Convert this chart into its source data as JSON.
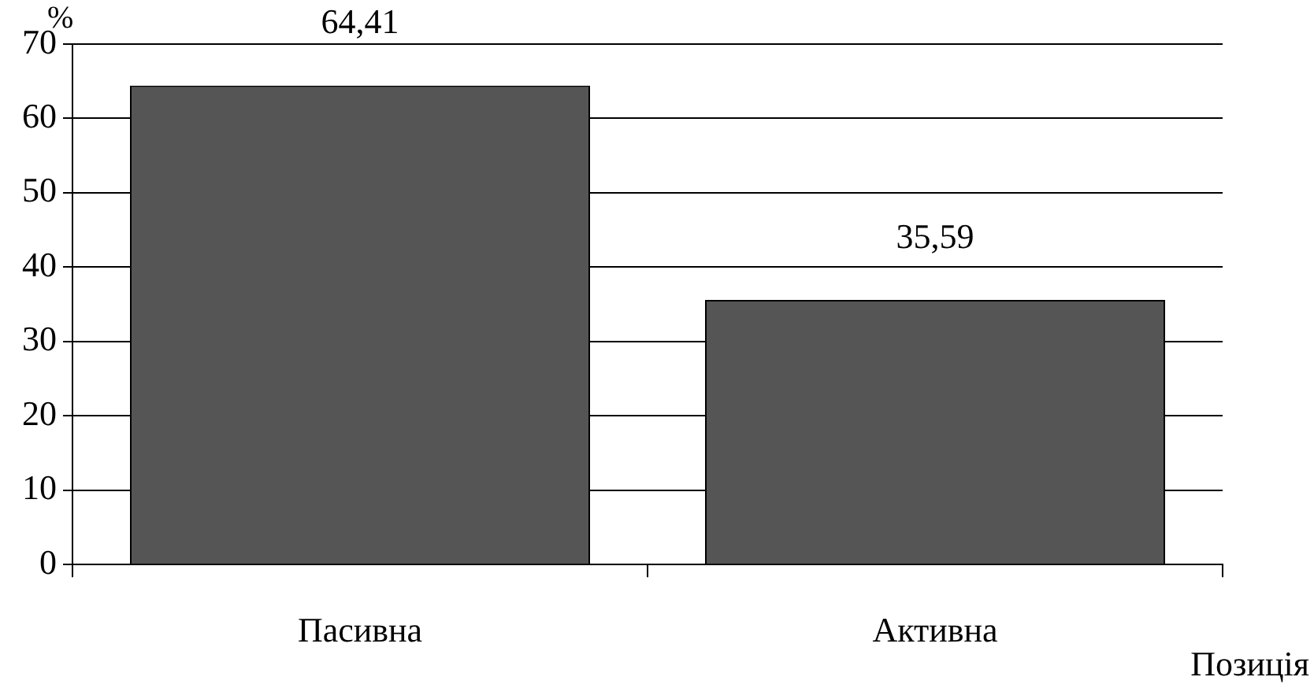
{
  "chart_data": {
    "type": "bar",
    "ylabel": "%",
    "xlabel": "Позиція",
    "categories": [
      "Пасивна",
      "Активна"
    ],
    "values": [
      64.41,
      35.59
    ],
    "value_labels": [
      "64,41",
      "35,59"
    ],
    "color": "#555555",
    "ylim": [
      0,
      70
    ],
    "yticks": [
      0,
      10,
      20,
      30,
      40,
      50,
      60,
      70
    ],
    "grid": "y",
    "legend": false
  }
}
